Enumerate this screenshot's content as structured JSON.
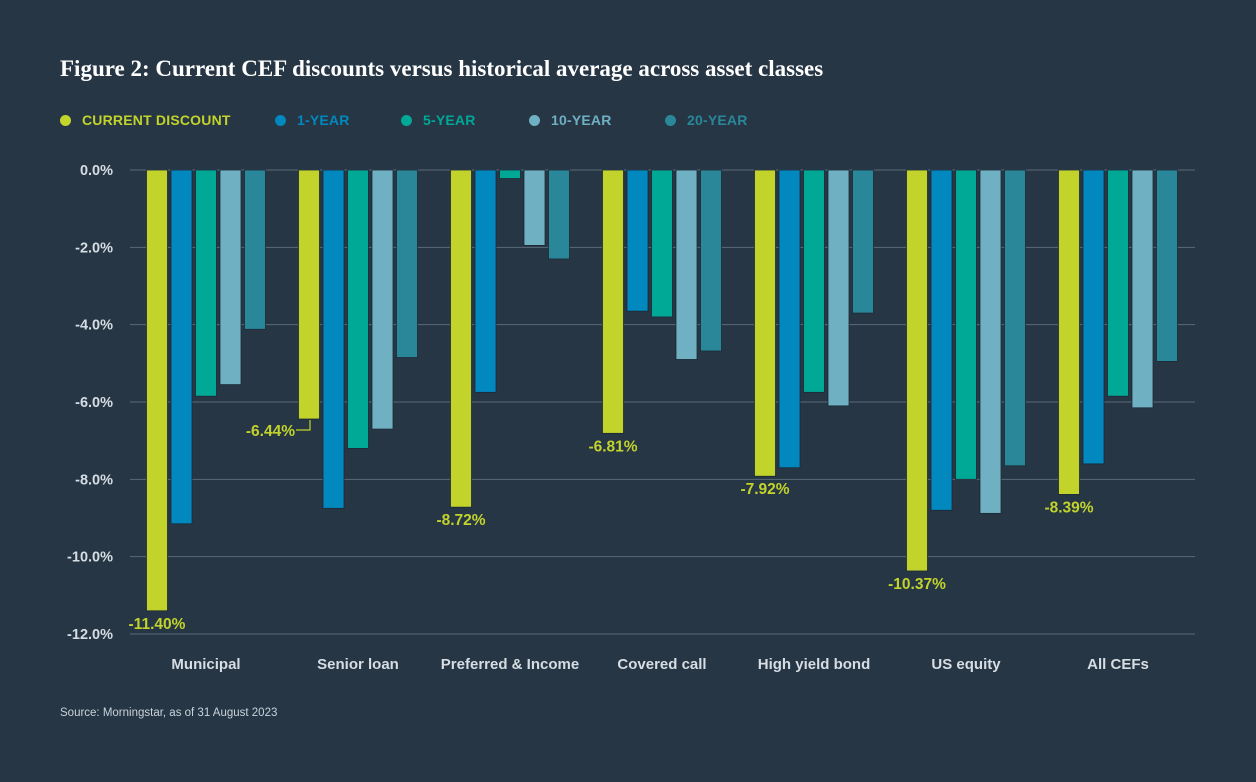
{
  "title": "Figure 2: Current CEF discounts versus historical average across asset classes",
  "source": "Source: Morningstar, as of 31 August 2023",
  "colors": {
    "background": "#263645",
    "grid": "#5a6a78",
    "axis_text": "#d6dde3",
    "current": "#c2d32b",
    "one_year": "#0088bf",
    "five_year": "#00a896",
    "ten_year": "#6fb0c2",
    "twenty_year": "#2a8799"
  },
  "legend": [
    {
      "label": "CURRENT DISCOUNT",
      "color": "#c2d32b"
    },
    {
      "label": "1-YEAR",
      "color": "#0088bf"
    },
    {
      "label": "5-YEAR",
      "color": "#00a896"
    },
    {
      "label": "10-YEAR",
      "color": "#6fb0c2"
    },
    {
      "label": "20-YEAR",
      "color": "#2a8799"
    }
  ],
  "chart_data": {
    "type": "bar",
    "title": "Figure 2: Current CEF discounts versus historical average across asset classes",
    "xlabel": "",
    "ylabel": "",
    "ylim": [
      -12,
      0
    ],
    "yticks": [
      0,
      -2,
      -4,
      -6,
      -8,
      -10,
      -12
    ],
    "ytick_labels": [
      "0.0%",
      "-2.0%",
      "-4.0%",
      "-6.0%",
      "-8.0%",
      "-10.0%",
      "-12.0%"
    ],
    "grid": true,
    "legend_position": "top-left",
    "categories": [
      "Municipal",
      "Senior loan",
      "Preferred & Income",
      "Covered call",
      "High yield bond",
      "US equity",
      "All CEFs"
    ],
    "series": [
      {
        "name": "CURRENT DISCOUNT",
        "color": "#c2d32b",
        "values": [
          -11.4,
          -6.44,
          -8.72,
          -6.81,
          -7.92,
          -10.37,
          -8.39
        ]
      },
      {
        "name": "1-YEAR",
        "color": "#0088bf",
        "values": [
          -9.15,
          -8.75,
          -5.75,
          -3.65,
          -7.7,
          -8.8,
          -7.6
        ]
      },
      {
        "name": "5-YEAR",
        "color": "#00a896",
        "values": [
          -5.85,
          -7.2,
          -0.22,
          -3.8,
          -5.75,
          -8.0,
          -5.85
        ]
      },
      {
        "name": "10-YEAR",
        "color": "#6fb0c2",
        "values": [
          -5.55,
          -6.7,
          -1.95,
          -4.9,
          -6.1,
          -8.88,
          -6.15
        ]
      },
      {
        "name": "20-YEAR",
        "color": "#2a8799",
        "values": [
          -4.12,
          -4.85,
          -2.3,
          -4.68,
          -3.7,
          -7.65,
          -4.95
        ]
      }
    ],
    "data_labels": [
      "-11.40%",
      "-6.44%",
      "-8.72%",
      "-6.81%",
      "-7.92%",
      "-10.37%",
      "-8.39%"
    ]
  }
}
